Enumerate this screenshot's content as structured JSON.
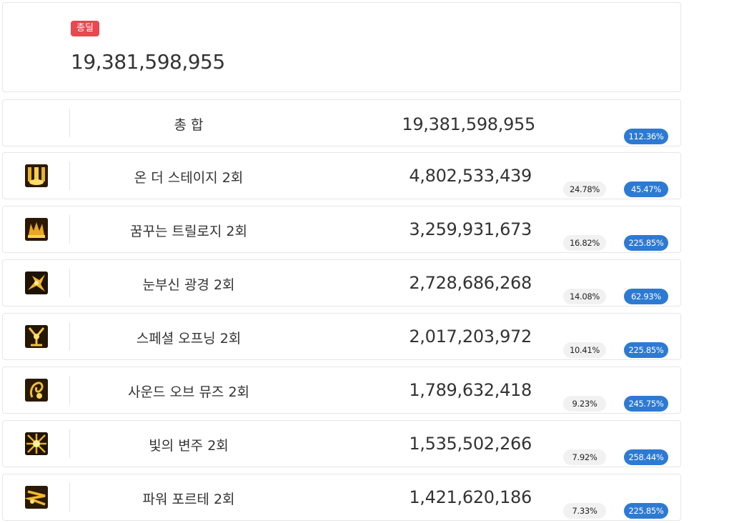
{
  "summary": {
    "badge": "총딜",
    "total": "19,381,598,955"
  },
  "total_row": {
    "name": "총 합",
    "damage": "19,381,598,955",
    "ratio": "112.36%"
  },
  "skills": [
    {
      "icon": "on-the-stage-icon",
      "name": "온 더 스테이지 2회",
      "damage": "4,802,533,439",
      "share": "24.78%",
      "ratio": "45.47%"
    },
    {
      "icon": "dreamy-trill-icon",
      "name": "꿈꾸는 트릴로지 2회",
      "damage": "3,259,931,673",
      "share": "16.82%",
      "ratio": "225.85%"
    },
    {
      "icon": "dazzling-scene-icon",
      "name": "눈부신 광경 2회",
      "damage": "2,728,686,268",
      "share": "14.08%",
      "ratio": "62.93%"
    },
    {
      "icon": "special-opening-icon",
      "name": "스페셜 오프닝 2회",
      "damage": "2,017,203,972",
      "share": "10.41%",
      "ratio": "225.85%"
    },
    {
      "icon": "sound-of-muse-icon",
      "name": "사운드 오브 뮤즈 2회",
      "damage": "1,789,632,418",
      "share": "9.23%",
      "ratio": "245.75%"
    },
    {
      "icon": "variation-of-light-icon",
      "name": "빛의 변주 2회",
      "damage": "1,535,502,266",
      "share": "7.92%",
      "ratio": "258.44%"
    },
    {
      "icon": "power-forte-icon",
      "name": "파워 포르테 2회",
      "damage": "1,421,620,186",
      "share": "7.33%",
      "ratio": "225.85%"
    }
  ]
}
